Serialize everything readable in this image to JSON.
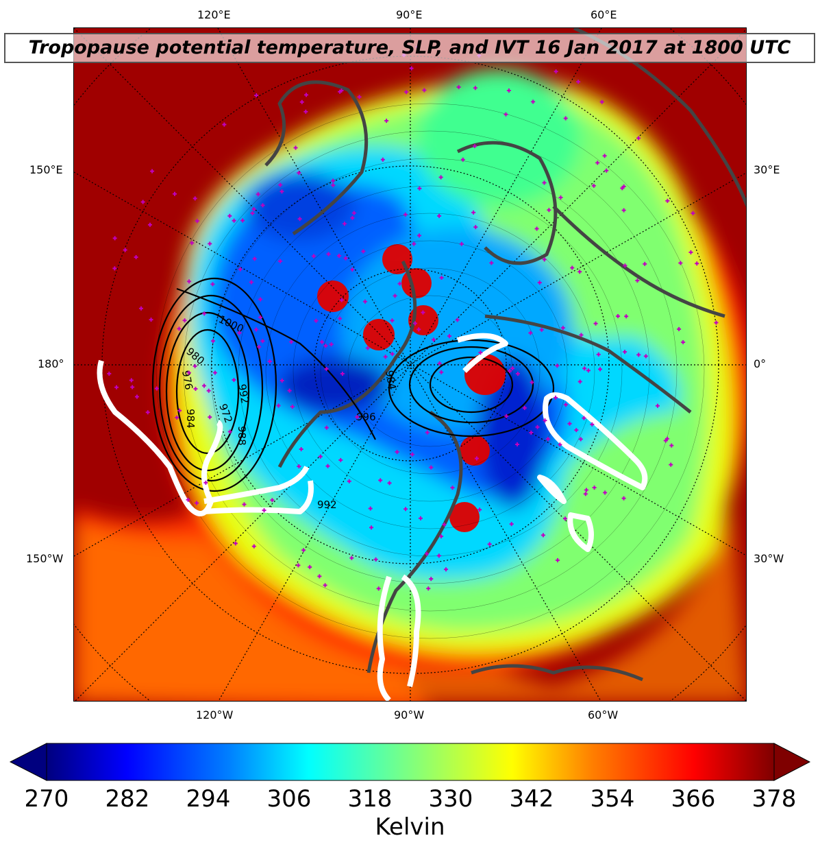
{
  "title": "Tropopause potential temperature, SLP, and IVT 16 Jan 2017 at 1800 UTC",
  "map": {
    "top_labels": [
      "120°E",
      "90°E",
      "60°E"
    ],
    "bottom_labels": [
      "120°W",
      "90°W",
      "60°W"
    ],
    "left_labels": [
      "150°E",
      "180°",
      "150°W"
    ],
    "right_labels": [
      "30°E",
      "0°",
      "30°W"
    ],
    "slp_labels": [
      "1000",
      "980",
      "976",
      "972",
      "988",
      "984",
      "992",
      "996",
      "984",
      "992"
    ]
  },
  "colorbar": {
    "label": "Kelvin",
    "ticks": [
      "270",
      "282",
      "294",
      "306",
      "318",
      "330",
      "342",
      "354",
      "366",
      "378"
    ],
    "range": [
      270,
      378
    ],
    "colors": [
      "#00007f",
      "#0000ff",
      "#007fff",
      "#00ffff",
      "#7fff7f",
      "#ffff00",
      "#ff7f00",
      "#ff0000",
      "#7f0000"
    ]
  }
}
